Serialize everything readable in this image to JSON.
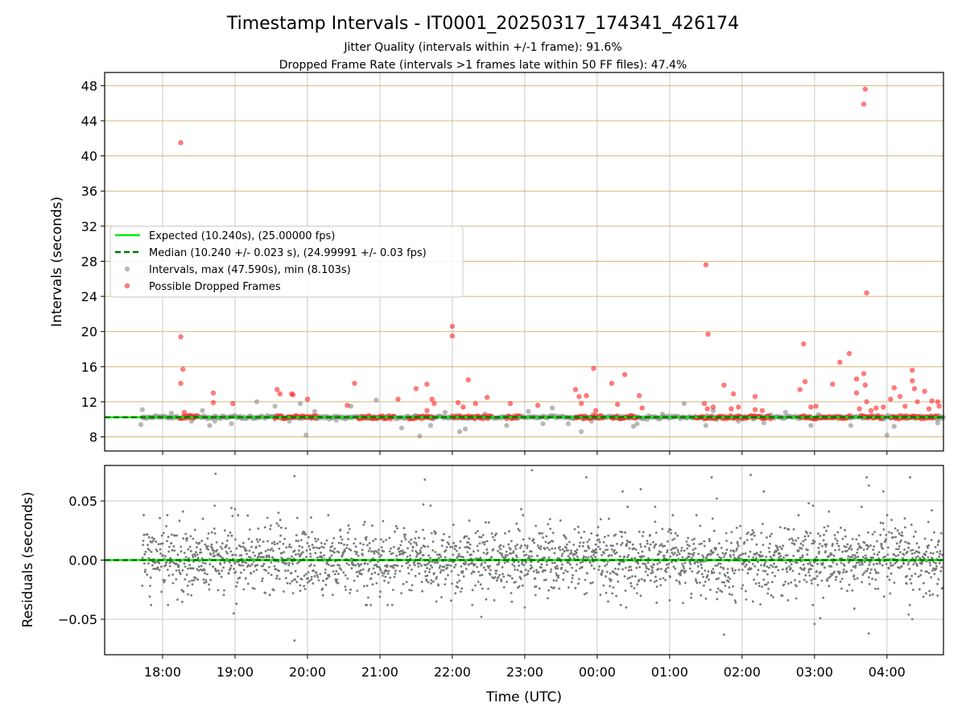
{
  "figure": {
    "title": "Timestamp Intervals - IT0001_20250317_174341_426174",
    "subtitle_1": "Jitter Quality (intervals within +/-1 frame): 91.6%",
    "subtitle_2": "Dropped Frame Rate (intervals >1 frames late within 50 FF files): 47.4%",
    "xlabel": "Time (UTC)"
  },
  "colors": {
    "expected": "#00ee00",
    "median": "#007700",
    "intervals": "#888888",
    "dropped": "#ff2222",
    "residuals": "#777777",
    "hgrid_top": "#d4b87a",
    "grid": "#c8c8c8"
  },
  "chart_data": [
    {
      "type": "scatter",
      "panel": "intervals",
      "ylabel": "Intervals (seconds)",
      "xlim": [
        -0.8,
        10.78
      ],
      "ylim": [
        6.4,
        49.5
      ],
      "x_ticks": [
        0,
        1,
        2,
        3,
        4,
        5,
        6,
        7,
        8,
        9,
        10
      ],
      "x_tick_labels": [
        "18:00",
        "19:00",
        "20:00",
        "21:00",
        "22:00",
        "23:00",
        "00:00",
        "01:00",
        "02:00",
        "03:00",
        "04:00"
      ],
      "y_ticks": [
        8,
        12,
        16,
        20,
        24,
        28,
        32,
        36,
        40,
        44,
        48
      ],
      "grid": true,
      "legend_placement": "center-left",
      "legend": {
        "expected": "Expected (10.240s), (25.00000 fps)",
        "median": "Median (10.240 +/- 0.023 s), (24.99991 +/- 0.03 fps)",
        "intervals": "Intervals, max (47.590s), min (8.103s)",
        "dropped": "Possible Dropped Frames"
      },
      "expected_value": 10.24,
      "median_value": 10.24,
      "interval_stats": {
        "max": 47.59,
        "min": 8.103
      },
      "baseline_band": {
        "y": 10.24,
        "x_range": [
          -0.28,
          10.78
        ]
      },
      "dropped_dense_ranges": [
        [
          0.25,
          0.48
        ],
        [
          1.55,
          2.15
        ],
        [
          2.7,
          3.2
        ],
        [
          3.4,
          3.75
        ],
        [
          4.0,
          4.55
        ],
        [
          4.75,
          4.95
        ],
        [
          5.7,
          6.1
        ],
        [
          6.2,
          6.55
        ],
        [
          7.35,
          8.4
        ],
        [
          8.8,
          9.5
        ],
        [
          9.65,
          9.95
        ],
        [
          10.05,
          10.7
        ]
      ],
      "intervals_points": [
        {
          "x": -0.3,
          "y": 9.4
        },
        {
          "x": -0.28,
          "y": 11.1
        },
        {
          "x": 0.12,
          "y": 10.7
        },
        {
          "x": 0.4,
          "y": 9.8
        },
        {
          "x": 0.55,
          "y": 11.0
        },
        {
          "x": 0.65,
          "y": 9.3
        },
        {
          "x": 0.72,
          "y": 9.8
        },
        {
          "x": 0.95,
          "y": 9.5
        },
        {
          "x": 1.3,
          "y": 12.0
        },
        {
          "x": 1.55,
          "y": 11.5
        },
        {
          "x": 1.75,
          "y": 9.8
        },
        {
          "x": 1.9,
          "y": 11.8
        },
        {
          "x": 1.98,
          "y": 8.2
        },
        {
          "x": 2.1,
          "y": 10.9
        },
        {
          "x": 2.4,
          "y": 9.9
        },
        {
          "x": 2.6,
          "y": 11.5
        },
        {
          "x": 2.95,
          "y": 12.2
        },
        {
          "x": 3.3,
          "y": 9.0
        },
        {
          "x": 3.55,
          "y": 8.1
        },
        {
          "x": 3.7,
          "y": 9.3
        },
        {
          "x": 3.9,
          "y": 10.8
        },
        {
          "x": 4.1,
          "y": 8.6
        },
        {
          "x": 4.18,
          "y": 8.9
        },
        {
          "x": 4.45,
          "y": 10.6
        },
        {
          "x": 4.75,
          "y": 9.3
        },
        {
          "x": 5.05,
          "y": 10.9
        },
        {
          "x": 5.25,
          "y": 9.5
        },
        {
          "x": 5.38,
          "y": 11.3
        },
        {
          "x": 5.6,
          "y": 9.5
        },
        {
          "x": 5.78,
          "y": 8.6
        },
        {
          "x": 5.92,
          "y": 9.8
        },
        {
          "x": 6.5,
          "y": 9.2
        },
        {
          "x": 6.55,
          "y": 9.5
        },
        {
          "x": 6.9,
          "y": 10.6
        },
        {
          "x": 7.2,
          "y": 11.8
        },
        {
          "x": 7.5,
          "y": 9.3
        },
        {
          "x": 7.6,
          "y": 11.0
        },
        {
          "x": 7.95,
          "y": 9.8
        },
        {
          "x": 8.3,
          "y": 9.6
        },
        {
          "x": 8.6,
          "y": 10.8
        },
        {
          "x": 8.95,
          "y": 9.3
        },
        {
          "x": 9.5,
          "y": 9.3
        },
        {
          "x": 10.0,
          "y": 8.2
        },
        {
          "x": 10.1,
          "y": 9.2
        },
        {
          "x": 10.7,
          "y": 9.6
        }
      ],
      "dropped_points": [
        {
          "x": 0.25,
          "y": 41.5
        },
        {
          "x": 0.25,
          "y": 19.4
        },
        {
          "x": 0.28,
          "y": 15.7
        },
        {
          "x": 0.25,
          "y": 14.1
        },
        {
          "x": 0.3,
          "y": 10.8
        },
        {
          "x": 0.7,
          "y": 13.0
        },
        {
          "x": 0.7,
          "y": 11.9
        },
        {
          "x": 0.97,
          "y": 11.8
        },
        {
          "x": 1.58,
          "y": 13.4
        },
        {
          "x": 1.62,
          "y": 12.9
        },
        {
          "x": 1.78,
          "y": 12.9
        },
        {
          "x": 1.8,
          "y": 12.8
        },
        {
          "x": 2.0,
          "y": 12.3
        },
        {
          "x": 2.55,
          "y": 11.6
        },
        {
          "x": 2.65,
          "y": 14.1
        },
        {
          "x": 3.25,
          "y": 12.3
        },
        {
          "x": 3.5,
          "y": 13.5
        },
        {
          "x": 3.65,
          "y": 14.0
        },
        {
          "x": 3.65,
          "y": 11.0
        },
        {
          "x": 3.72,
          "y": 12.3
        },
        {
          "x": 3.75,
          "y": 11.8
        },
        {
          "x": 4.0,
          "y": 20.6
        },
        {
          "x": 4.0,
          "y": 19.5
        },
        {
          "x": 4.08,
          "y": 11.9
        },
        {
          "x": 4.15,
          "y": 11.4
        },
        {
          "x": 4.22,
          "y": 14.5
        },
        {
          "x": 4.32,
          "y": 11.8
        },
        {
          "x": 4.48,
          "y": 12.5
        },
        {
          "x": 4.8,
          "y": 11.8
        },
        {
          "x": 5.18,
          "y": 11.6
        },
        {
          "x": 5.7,
          "y": 13.4
        },
        {
          "x": 5.75,
          "y": 12.6
        },
        {
          "x": 5.78,
          "y": 11.8
        },
        {
          "x": 5.85,
          "y": 12.7
        },
        {
          "x": 5.95,
          "y": 15.8
        },
        {
          "x": 5.98,
          "y": 11.0
        },
        {
          "x": 6.2,
          "y": 14.1
        },
        {
          "x": 6.28,
          "y": 11.7
        },
        {
          "x": 6.38,
          "y": 15.1
        },
        {
          "x": 6.58,
          "y": 12.7
        },
        {
          "x": 6.62,
          "y": 11.3
        },
        {
          "x": 7.5,
          "y": 27.6
        },
        {
          "x": 7.53,
          "y": 19.7
        },
        {
          "x": 7.48,
          "y": 11.8
        },
        {
          "x": 7.52,
          "y": 11.2
        },
        {
          "x": 7.6,
          "y": 11.4
        },
        {
          "x": 7.75,
          "y": 13.9
        },
        {
          "x": 7.85,
          "y": 11.2
        },
        {
          "x": 7.88,
          "y": 12.9
        },
        {
          "x": 7.95,
          "y": 11.4
        },
        {
          "x": 8.18,
          "y": 12.6
        },
        {
          "x": 8.18,
          "y": 11.1
        },
        {
          "x": 8.28,
          "y": 11.0
        },
        {
          "x": 8.8,
          "y": 13.4
        },
        {
          "x": 8.85,
          "y": 18.6
        },
        {
          "x": 8.87,
          "y": 14.3
        },
        {
          "x": 8.95,
          "y": 11.4
        },
        {
          "x": 9.02,
          "y": 11.5
        },
        {
          "x": 9.25,
          "y": 14.0
        },
        {
          "x": 9.35,
          "y": 16.5
        },
        {
          "x": 9.48,
          "y": 17.5
        },
        {
          "x": 9.58,
          "y": 14.6
        },
        {
          "x": 9.58,
          "y": 13.0
        },
        {
          "x": 9.62,
          "y": 11.2
        },
        {
          "x": 9.7,
          "y": 47.6
        },
        {
          "x": 9.68,
          "y": 45.9
        },
        {
          "x": 9.72,
          "y": 24.4
        },
        {
          "x": 9.68,
          "y": 15.2
        },
        {
          "x": 9.7,
          "y": 13.9
        },
        {
          "x": 9.72,
          "y": 12.0
        },
        {
          "x": 9.78,
          "y": 11.0
        },
        {
          "x": 9.85,
          "y": 11.3
        },
        {
          "x": 9.95,
          "y": 11.4
        },
        {
          "x": 10.05,
          "y": 12.3
        },
        {
          "x": 10.1,
          "y": 13.6
        },
        {
          "x": 10.18,
          "y": 12.6
        },
        {
          "x": 10.25,
          "y": 11.5
        },
        {
          "x": 10.35,
          "y": 15.6
        },
        {
          "x": 10.35,
          "y": 14.4
        },
        {
          "x": 10.38,
          "y": 13.5
        },
        {
          "x": 10.42,
          "y": 12.0
        },
        {
          "x": 10.52,
          "y": 13.2
        },
        {
          "x": 10.58,
          "y": 11.2
        },
        {
          "x": 10.62,
          "y": 12.1
        },
        {
          "x": 10.7,
          "y": 12.0
        },
        {
          "x": 10.72,
          "y": 11.5
        }
      ]
    },
    {
      "type": "scatter",
      "panel": "residuals",
      "ylabel": "Residuals (seconds)",
      "xlabel": "Time (UTC)",
      "xlim": [
        -0.8,
        10.78
      ],
      "ylim": [
        -0.08,
        0.08
      ],
      "x_ticks": [
        0,
        1,
        2,
        3,
        4,
        5,
        6,
        7,
        8,
        9,
        10
      ],
      "x_tick_labels": [
        "18:00",
        "19:00",
        "20:00",
        "21:00",
        "22:00",
        "23:00",
        "00:00",
        "01:00",
        "02:00",
        "03:00",
        "04:00"
      ],
      "y_ticks": [
        -0.05,
        0.0,
        0.05
      ],
      "y_tick_labels": [
        "−0.05",
        "0.00",
        "0.05"
      ],
      "grid": true,
      "zero_line": 0.0,
      "spread_sd": 0.014,
      "points": [
        {
          "x": 0.28,
          "y": 0.041
        },
        {
          "x": 0.35,
          "y": -0.029
        },
        {
          "x": 0.42,
          "y": 0.018
        },
        {
          "x": 0.73,
          "y": 0.073
        },
        {
          "x": 0.72,
          "y": 0.046
        },
        {
          "x": 0.95,
          "y": 0.044
        },
        {
          "x": 1.0,
          "y": 0.043
        },
        {
          "x": 0.98,
          "y": -0.045
        },
        {
          "x": 1.02,
          "y": -0.037
        },
        {
          "x": 1.6,
          "y": 0.04
        },
        {
          "x": 1.82,
          "y": 0.071
        },
        {
          "x": 1.82,
          "y": -0.068
        },
        {
          "x": 1.9,
          "y": -0.026
        },
        {
          "x": 2.05,
          "y": 0.036
        },
        {
          "x": 2.2,
          "y": -0.025
        },
        {
          "x": 3.0,
          "y": -0.031
        },
        {
          "x": 3.5,
          "y": 0.024
        },
        {
          "x": 3.62,
          "y": 0.068
        },
        {
          "x": 3.6,
          "y": 0.047
        },
        {
          "x": 3.7,
          "y": 0.046
        },
        {
          "x": 3.78,
          "y": -0.035
        },
        {
          "x": 4.4,
          "y": -0.048
        },
        {
          "x": 5.1,
          "y": 0.076
        },
        {
          "x": 4.95,
          "y": 0.043
        },
        {
          "x": 5.0,
          "y": -0.04
        },
        {
          "x": 5.85,
          "y": 0.07
        },
        {
          "x": 6.35,
          "y": 0.058
        },
        {
          "x": 6.15,
          "y": -0.035
        },
        {
          "x": 6.42,
          "y": 0.045
        },
        {
          "x": 6.4,
          "y": -0.04
        },
        {
          "x": 6.6,
          "y": 0.06
        },
        {
          "x": 6.8,
          "y": 0.045
        },
        {
          "x": 6.82,
          "y": -0.036
        },
        {
          "x": 7.0,
          "y": -0.034
        },
        {
          "x": 7.58,
          "y": 0.07
        },
        {
          "x": 7.65,
          "y": 0.052
        },
        {
          "x": 7.75,
          "y": -0.063
        },
        {
          "x": 8.12,
          "y": 0.072
        },
        {
          "x": 8.3,
          "y": 0.058
        },
        {
          "x": 8.15,
          "y": -0.035
        },
        {
          "x": 8.92,
          "y": 0.048
        },
        {
          "x": 8.98,
          "y": 0.046
        },
        {
          "x": 9.0,
          "y": -0.054
        },
        {
          "x": 9.08,
          "y": -0.049
        },
        {
          "x": 9.2,
          "y": 0.041
        },
        {
          "x": 9.55,
          "y": -0.041
        },
        {
          "x": 9.65,
          "y": 0.045
        },
        {
          "x": 9.72,
          "y": 0.07
        },
        {
          "x": 9.75,
          "y": 0.063
        },
        {
          "x": 9.75,
          "y": -0.062
        },
        {
          "x": 9.95,
          "y": 0.058
        },
        {
          "x": 10.3,
          "y": -0.046
        },
        {
          "x": 10.32,
          "y": 0.07
        },
        {
          "x": 10.35,
          "y": -0.05
        },
        {
          "x": 10.62,
          "y": 0.042
        },
        {
          "x": 10.7,
          "y": -0.03
        }
      ]
    }
  ]
}
